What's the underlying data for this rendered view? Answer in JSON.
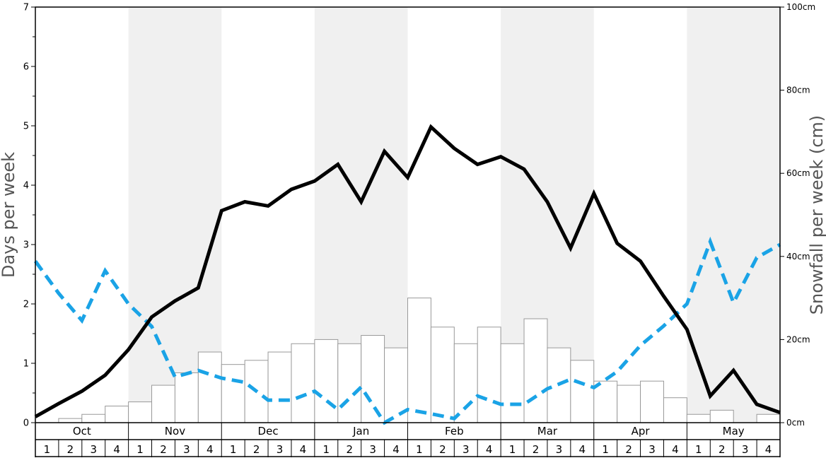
{
  "chart_data": {
    "type": "bar+line",
    "ylabel_left": "Days per week",
    "ylabel_right": "Snowfall per week (cm)",
    "ylim_left": [
      0,
      7
    ],
    "ylim_right": [
      0,
      100
    ],
    "left_ticks": [
      "0",
      "1",
      "2",
      "3",
      "4",
      "5",
      "6",
      "7"
    ],
    "right_ticks": [
      "0cm",
      "20cm",
      "40cm",
      "60cm",
      "80cm",
      "100cm"
    ],
    "months": [
      "Oct",
      "Nov",
      "Dec",
      "Jan",
      "Feb",
      "Mar",
      "Apr",
      "May"
    ],
    "weeks": [
      "1",
      "2",
      "3",
      "4"
    ],
    "snowfall_cm": [
      0,
      1,
      2,
      4,
      5,
      9,
      12,
      17,
      14,
      15,
      17,
      19,
      20,
      19,
      21,
      18,
      30,
      23,
      19,
      23,
      19,
      25,
      18,
      15,
      10,
      9,
      10,
      6,
      2,
      3,
      0,
      2
    ],
    "series": [
      {
        "name": "black solid line",
        "unit": "days per week",
        "values": [
          0.1,
          0.32,
          0.53,
          0.8,
          1.23,
          1.78,
          2.05,
          2.27,
          3.57,
          3.72,
          3.65,
          3.93,
          4.07,
          4.35,
          3.72,
          4.57,
          4.13,
          4.98,
          4.62,
          4.35,
          4.48,
          4.27,
          3.72,
          2.94,
          3.86,
          3.02,
          2.72,
          2.13,
          1.57,
          0.45,
          0.88,
          0.31,
          0.17
        ]
      },
      {
        "name": "blue dashed line",
        "unit": "days per week",
        "values": [
          2.72,
          2.18,
          1.72,
          2.56,
          2.0,
          1.62,
          0.77,
          0.88,
          0.75,
          0.68,
          0.38,
          0.38,
          0.53,
          0.22,
          0.6,
          0.0,
          0.22,
          0.15,
          0.07,
          0.45,
          0.31,
          0.31,
          0.57,
          0.73,
          0.59,
          0.86,
          1.3,
          1.63,
          2.0,
          3.05,
          2.02,
          2.78,
          3.0
        ]
      }
    ],
    "colors": {
      "solid_line": "#000000",
      "dashed_line": "#1aa3e6",
      "bars_fill": "#ffffff",
      "bars_stroke": "#999999",
      "band_shade": "#f0f0f0"
    },
    "grid": false
  }
}
